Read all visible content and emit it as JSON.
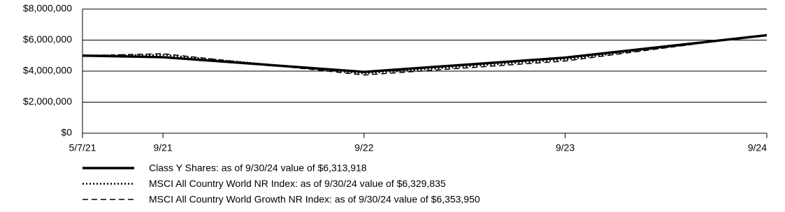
{
  "chart_data": {
    "type": "line",
    "x": [
      "5/7/21",
      "9/21",
      "9/22",
      "9/23",
      "9/24"
    ],
    "ylim": [
      0,
      8000000
    ],
    "yticks": [
      {
        "value": 0,
        "label": "$0"
      },
      {
        "value": 2000000,
        "label": "$2,000,000"
      },
      {
        "value": 4000000,
        "label": "$4,000,000"
      },
      {
        "value": 6000000,
        "label": "$6,000,000"
      },
      {
        "value": 8000000,
        "label": "$8,000,000"
      }
    ],
    "grid": true,
    "series": [
      {
        "name": "Class Y Shares: as of 9/30/24 value of $6,313,918",
        "color": "#000000",
        "dash": "solid",
        "values": [
          5000000,
          4900000,
          3950000,
          4870000,
          6313918
        ]
      },
      {
        "name": "MSCI All Country World NR Index: as of 9/30/24 value of $6,329,835",
        "color": "#000000",
        "dash": "dotted",
        "values": [
          5000000,
          5050000,
          3850000,
          4750000,
          6329835
        ]
      },
      {
        "name": "MSCI All Country World Growth NR Index: as of 9/30/24 value of $6,353,950",
        "color": "#000000",
        "dash": "dashed",
        "values": [
          5000000,
          5120000,
          3750000,
          4650000,
          6353950
        ]
      }
    ]
  }
}
